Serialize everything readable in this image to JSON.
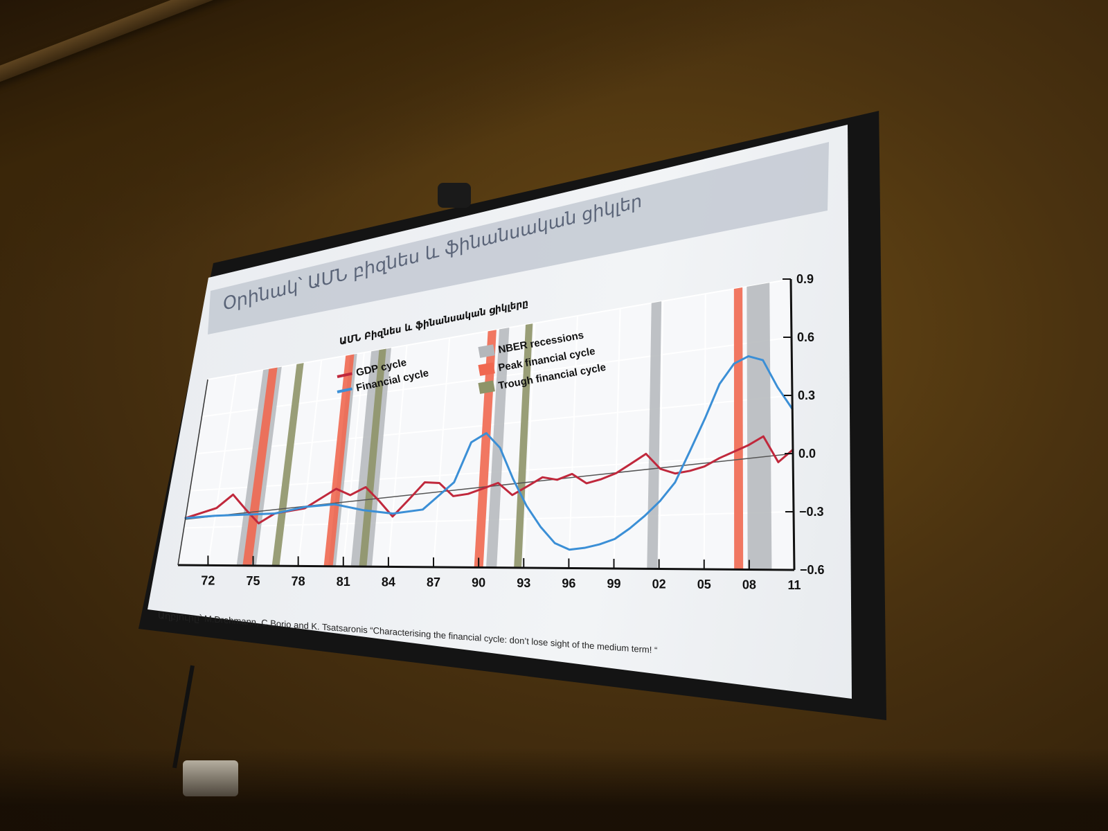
{
  "slide": {
    "title": "Օրինակ՝ ԱՄՆ բիզնես և ֆինանսական ցիկլեր",
    "source": "Աղբյուրը՝ M.Drehmann, C.Borio and K. Tsatsaronis  “Characterising the financial cycle: don’t lose sight of the medium term! “"
  },
  "colors": {
    "gdp": "#c0283c",
    "financial": "#3b8fd6",
    "recession": "#b4b7bb",
    "peak": "#f06850",
    "trough": "#8e9468"
  },
  "chart_data": {
    "type": "line",
    "title": "ԱՄՆ Բիզնես և ֆինանսական ցիկլերը",
    "ylim": [
      -0.6,
      0.9
    ],
    "xlim": [
      1970,
      2011
    ],
    "y_ticks": [
      "0.9",
      "0.6",
      "0.3",
      "0.0",
      "−0.3",
      "−0.6"
    ],
    "y_tick_values": [
      0.9,
      0.6,
      0.3,
      0.0,
      -0.3,
      -0.6
    ],
    "x_ticks": [
      "72",
      "75",
      "78",
      "81",
      "84",
      "87",
      "90",
      "93",
      "96",
      "99",
      "02",
      "05",
      "08",
      "11"
    ],
    "x_tick_values": [
      1972,
      1975,
      1978,
      1981,
      1984,
      1987,
      1990,
      1993,
      1996,
      1999,
      2002,
      2005,
      2008,
      2011
    ],
    "legend": {
      "gdp": "GDP cycle",
      "financial": "Financial cycle",
      "recession": "NBER recessions",
      "peak": "Peak financial cycle",
      "trough": "Trough financial cycle"
    },
    "series": [
      {
        "name": "GDP cycle",
        "x": [
          1970,
          1972,
          1973,
          1974,
          1975,
          1976,
          1978,
          1980,
          1981,
          1982,
          1983,
          1984,
          1985,
          1986,
          1987,
          1988,
          1989,
          1990,
          1991,
          1992,
          1993,
          1994,
          1995,
          1996,
          1997,
          1998,
          1999,
          2000,
          2001,
          2002,
          2003,
          2004,
          2005,
          2006,
          2007,
          2008,
          2009,
          2010,
          2011
        ],
        "values": [
          -0.22,
          -0.15,
          -0.05,
          -0.17,
          -0.28,
          -0.21,
          -0.18,
          -0.05,
          -0.1,
          -0.05,
          -0.15,
          -0.26,
          -0.15,
          -0.04,
          -0.05,
          -0.14,
          -0.13,
          -0.1,
          -0.07,
          -0.15,
          -0.1,
          -0.05,
          -0.07,
          -0.04,
          -0.1,
          -0.08,
          -0.05,
          0.0,
          0.05,
          -0.04,
          -0.07,
          -0.06,
          -0.04,
          0.0,
          0.03,
          0.06,
          0.1,
          -0.04,
          0.02
        ]
      },
      {
        "name": "Financial cycle",
        "x": [
          1970,
          1972,
          1974,
          1976,
          1978,
          1980,
          1982,
          1984,
          1986,
          1988,
          1989,
          1990,
          1991,
          1992,
          1993,
          1994,
          1995,
          1996,
          1997,
          1998,
          1999,
          2000,
          2001,
          2002,
          2003,
          2004,
          2005,
          2006,
          2007,
          2008,
          2009,
          2010,
          2011
        ],
        "values": [
          -0.22,
          -0.21,
          -0.21,
          -0.21,
          -0.17,
          -0.16,
          -0.21,
          -0.24,
          -0.22,
          -0.05,
          0.2,
          0.25,
          0.15,
          -0.05,
          -0.22,
          -0.35,
          -0.45,
          -0.49,
          -0.48,
          -0.46,
          -0.43,
          -0.37,
          -0.3,
          -0.22,
          -0.12,
          0.05,
          0.22,
          0.4,
          0.5,
          0.53,
          0.5,
          0.35,
          0.23
        ]
      }
    ],
    "recessions": [
      [
        1973.9,
        1975.2
      ],
      [
        1980.0,
        1980.5
      ],
      [
        1981.5,
        1982.9
      ],
      [
        1990.5,
        1991.2
      ],
      [
        2001.2,
        2001.9
      ],
      [
        2007.9,
        2009.5
      ]
    ],
    "peaks": [
      1974.6,
      1980.0,
      1990.0,
      2007.3
    ],
    "troughs": [
      1976.5,
      1982.3,
      1992.6
    ]
  }
}
